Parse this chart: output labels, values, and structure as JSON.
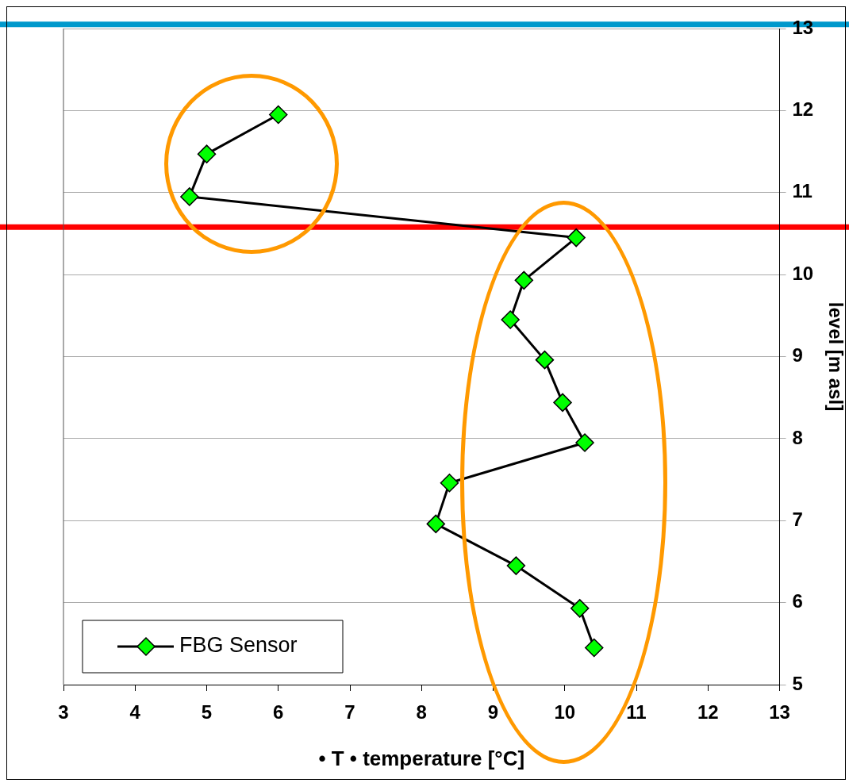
{
  "chart_data": {
    "type": "line",
    "xlabel": "• T • temperature [°C]",
    "ylabel": "level [m asl]",
    "xlim": [
      3,
      13
    ],
    "xticks": [
      3,
      4,
      5,
      6,
      7,
      8,
      9,
      10,
      11,
      12,
      13
    ],
    "ylim": [
      5,
      13
    ],
    "yticks": [
      5,
      6,
      7,
      8,
      9,
      10,
      11,
      12,
      13
    ],
    "grid": "y",
    "legend": "bottom left",
    "marker": "diamond",
    "line_style": "solid",
    "series": [
      {
        "name": "FBG Sensor",
        "color": "#00ff00",
        "x": [
          6.0,
          5.0,
          4.76,
          10.16,
          9.43,
          9.24,
          9.72,
          9.97,
          10.28,
          8.39,
          8.2,
          9.32,
          10.21,
          10.41
        ],
        "values": [
          11.95,
          11.47,
          10.95,
          10.45,
          9.93,
          9.45,
          8.96,
          8.44,
          7.95,
          7.46,
          6.96,
          6.45,
          5.93,
          5.45
        ]
      }
    ],
    "ref_lines": [
      {
        "axis": "y",
        "value": 13.05,
        "color": "#0099cc"
      },
      {
        "axis": "y",
        "value": 10.58,
        "color": "#ff0000"
      }
    ]
  }
}
